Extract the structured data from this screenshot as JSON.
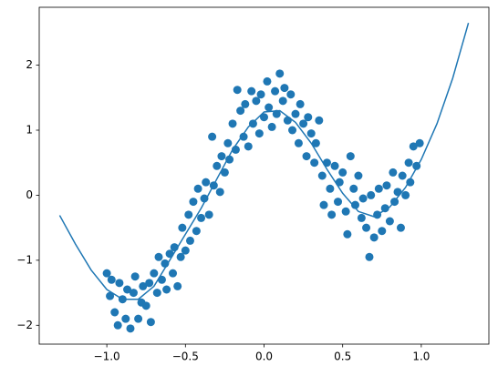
{
  "chart_data": {
    "type": "scatter",
    "xlim": [
      -1.43,
      1.43
    ],
    "ylim": [
      -2.29,
      2.89
    ],
    "xticks": [
      {
        "value": -1,
        "label": "−1.0"
      },
      {
        "value": -0.5,
        "label": "−0.5"
      },
      {
        "value": 0,
        "label": "0.0"
      },
      0.5,
      {
        "value": 1,
        "label": "1.0"
      }
    ],
    "yticks": [
      {
        "value": -2,
        "label": "−2"
      },
      {
        "value": -1,
        "label": "−1"
      },
      0,
      1,
      2
    ],
    "grid": false,
    "series": [
      {
        "type": "scatter",
        "color": "#1f77b4",
        "x": [
          -1.0,
          -0.98,
          -0.97,
          -0.95,
          -0.93,
          -0.92,
          -0.9,
          -0.88,
          -0.87,
          -0.85,
          -0.83,
          -0.82,
          -0.8,
          -0.78,
          -0.77,
          -0.75,
          -0.73,
          -0.72,
          -0.7,
          -0.68,
          -0.67,
          -0.65,
          -0.63,
          -0.62,
          -0.6,
          -0.58,
          -0.57,
          -0.55,
          -0.53,
          -0.52,
          -0.5,
          -0.48,
          -0.47,
          -0.45,
          -0.43,
          -0.42,
          -0.4,
          -0.38,
          -0.37,
          -0.35,
          -0.33,
          -0.32,
          -0.3,
          -0.28,
          -0.27,
          -0.25,
          -0.23,
          -0.22,
          -0.2,
          -0.18,
          -0.17,
          -0.15,
          -0.13,
          -0.12,
          -0.1,
          -0.08,
          -0.07,
          -0.05,
          -0.03,
          -0.02,
          0.0,
          0.02,
          0.03,
          0.05,
          0.07,
          0.08,
          0.1,
          0.12,
          0.13,
          0.15,
          0.17,
          0.18,
          0.2,
          0.22,
          0.23,
          0.25,
          0.27,
          0.28,
          0.3,
          0.32,
          0.33,
          0.35,
          0.37,
          0.38,
          0.4,
          0.42,
          0.43,
          0.45,
          0.47,
          0.48,
          0.5,
          0.52,
          0.53,
          0.55,
          0.57,
          0.58,
          0.6,
          0.62,
          0.63,
          0.65,
          0.67,
          0.68,
          0.7,
          0.72,
          0.73,
          0.75,
          0.77,
          0.78,
          0.8,
          0.82,
          0.83,
          0.85,
          0.87,
          0.88,
          0.9,
          0.92,
          0.93,
          0.95,
          0.97,
          0.99
        ],
        "values": [
          -1.2,
          -1.55,
          -1.3,
          -1.8,
          -2.0,
          -1.35,
          -1.6,
          -1.9,
          -1.45,
          -2.05,
          -1.5,
          -1.25,
          -1.9,
          -1.65,
          -1.4,
          -1.7,
          -1.35,
          -1.95,
          -1.2,
          -1.5,
          -0.95,
          -1.3,
          -1.05,
          -1.45,
          -0.9,
          -1.2,
          -0.8,
          -1.4,
          -0.95,
          -0.5,
          -0.85,
          -0.3,
          -0.7,
          -0.1,
          -0.55,
          0.1,
          -0.35,
          -0.05,
          0.2,
          -0.3,
          0.9,
          0.15,
          0.45,
          0.05,
          0.6,
          0.35,
          0.8,
          0.55,
          1.1,
          0.7,
          1.62,
          1.3,
          0.9,
          1.4,
          0.75,
          1.6,
          1.1,
          1.45,
          0.95,
          1.55,
          1.2,
          1.75,
          1.35,
          1.05,
          1.6,
          1.25,
          1.87,
          1.45,
          1.65,
          1.15,
          1.55,
          1.0,
          1.25,
          0.8,
          1.4,
          1.1,
          0.6,
          1.2,
          0.95,
          0.5,
          0.8,
          1.15,
          0.3,
          -0.15,
          0.5,
          0.1,
          -0.3,
          0.45,
          -0.1,
          0.2,
          0.35,
          -0.25,
          -0.6,
          0.6,
          0.1,
          -0.15,
          0.3,
          -0.35,
          -0.05,
          -0.5,
          -0.95,
          0.0,
          -0.65,
          -0.3,
          0.1,
          -0.55,
          -0.2,
          0.15,
          -0.4,
          0.35,
          -0.1,
          0.05,
          -0.5,
          0.3,
          0.0,
          0.5,
          0.2,
          0.75,
          0.45,
          0.8
        ]
      },
      {
        "type": "line",
        "color": "#1f77b4",
        "x": [
          -1.3,
          -1.2,
          -1.1,
          -1.0,
          -0.9,
          -0.8,
          -0.7,
          -0.6,
          -0.5,
          -0.4,
          -0.3,
          -0.2,
          -0.1,
          0.0,
          0.1,
          0.2,
          0.3,
          0.4,
          0.5,
          0.6,
          0.7,
          0.8,
          0.9,
          1.0,
          1.1,
          1.2,
          1.3
        ],
        "values": [
          -0.31,
          -0.75,
          -1.15,
          -1.45,
          -1.6,
          -1.6,
          -1.4,
          -1.0,
          -0.6,
          -0.2,
          0.25,
          0.7,
          1.05,
          1.28,
          1.3,
          1.12,
          0.8,
          0.4,
          0.03,
          -0.25,
          -0.33,
          -0.18,
          0.12,
          0.55,
          1.1,
          1.8,
          2.65
        ]
      }
    ]
  }
}
